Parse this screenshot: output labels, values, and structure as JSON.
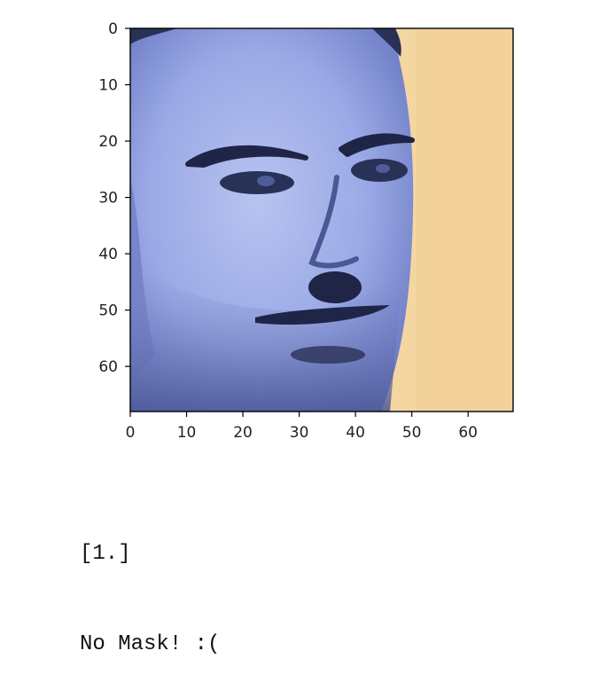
{
  "chart_data": {
    "type": "image",
    "image_subject": "face-photo",
    "xlim": [
      0,
      68
    ],
    "ylim": [
      68,
      0
    ],
    "x_ticks": [
      0,
      10,
      20,
      30,
      40,
      50,
      60
    ],
    "y_ticks": [
      0,
      10,
      20,
      30,
      40,
      50,
      60
    ],
    "x_tick_labels": [
      "0",
      "10",
      "20",
      "30",
      "40",
      "50",
      "60"
    ],
    "y_tick_labels": [
      "0",
      "10",
      "20",
      "30",
      "40",
      "50",
      "60"
    ],
    "colors": {
      "face": "#9aa9e6",
      "background": "#f4d6a1",
      "hair": "#2a3157",
      "feature": "#1f2547"
    }
  },
  "output": {
    "lines": [
      "[1.]",
      "No Mask! :("
    ]
  }
}
